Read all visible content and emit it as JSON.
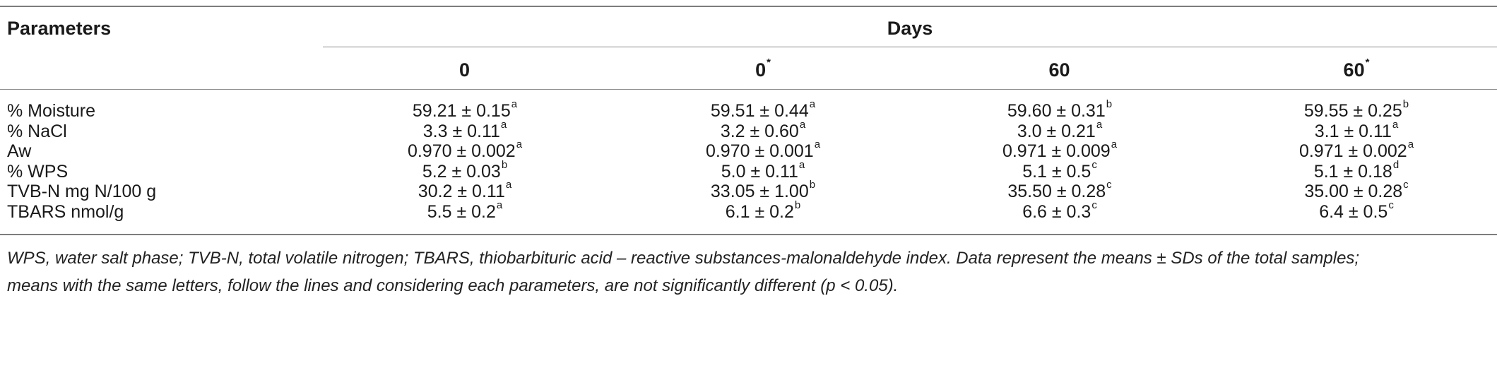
{
  "table": {
    "param_header": "Parameters",
    "days_header": "Days",
    "columns": [
      {
        "label": "0",
        "sup": ""
      },
      {
        "label": "0",
        "sup": "*"
      },
      {
        "label": "60",
        "sup": ""
      },
      {
        "label": "60",
        "sup": "*"
      }
    ],
    "rows": [
      {
        "param": "% Moisture",
        "cells": [
          {
            "v": "59.21 ± 0.15",
            "s": "a"
          },
          {
            "v": "59.51 ± 0.44",
            "s": "a"
          },
          {
            "v": "59.60 ± 0.31",
            "s": "b"
          },
          {
            "v": "59.55 ± 0.25",
            "s": "b"
          }
        ]
      },
      {
        "param": "% NaCl",
        "cells": [
          {
            "v": "3.3 ± 0.11",
            "s": "a"
          },
          {
            "v": "3.2 ± 0.60",
            "s": "a"
          },
          {
            "v": "3.0 ± 0.21",
            "s": "a"
          },
          {
            "v": "3.1 ± 0.11",
            "s": "a"
          }
        ]
      },
      {
        "param": "Aw",
        "cells": [
          {
            "v": "0.970 ± 0.002",
            "s": "a"
          },
          {
            "v": "0.970 ± 0.001",
            "s": "a"
          },
          {
            "v": "0.971 ± 0.009",
            "s": "a"
          },
          {
            "v": "0.971 ± 0.002",
            "s": "a"
          }
        ]
      },
      {
        "param": "% WPS",
        "cells": [
          {
            "v": "5.2 ± 0.03",
            "s": "b"
          },
          {
            "v": "5.0 ± 0.11",
            "s": "a"
          },
          {
            "v": "5.1 ± 0.5",
            "s": "c"
          },
          {
            "v": "5.1 ± 0.18",
            "s": "d"
          }
        ]
      },
      {
        "param": "TVB-N mg N/100 g",
        "cells": [
          {
            "v": "30.2 ± 0.11",
            "s": "a"
          },
          {
            "v": "33.05 ± 1.00",
            "s": "b"
          },
          {
            "v": "35.50 ± 0.28",
            "s": "c"
          },
          {
            "v": "35.00 ± 0.28",
            "s": "c"
          }
        ]
      },
      {
        "param": "TBARS nmol/g",
        "cells": [
          {
            "v": "5.5 ± 0.2",
            "s": "a"
          },
          {
            "v": "6.1 ± 0.2",
            "s": "b"
          },
          {
            "v": "6.6 ± 0.3",
            "s": "c"
          },
          {
            "v": "6.4 ± 0.5",
            "s": "c"
          }
        ]
      }
    ]
  },
  "footnote": {
    "line1": "WPS, water salt phase; TVB-N, total volatile nitrogen; TBARS, thiobarbituric acid – reactive substances-malonaldehyde index. Data represent the means ± SDs of the total samples;",
    "line2": "means with the same letters, follow the lines and considering each parameters, are not significantly different (p < 0.05)."
  }
}
